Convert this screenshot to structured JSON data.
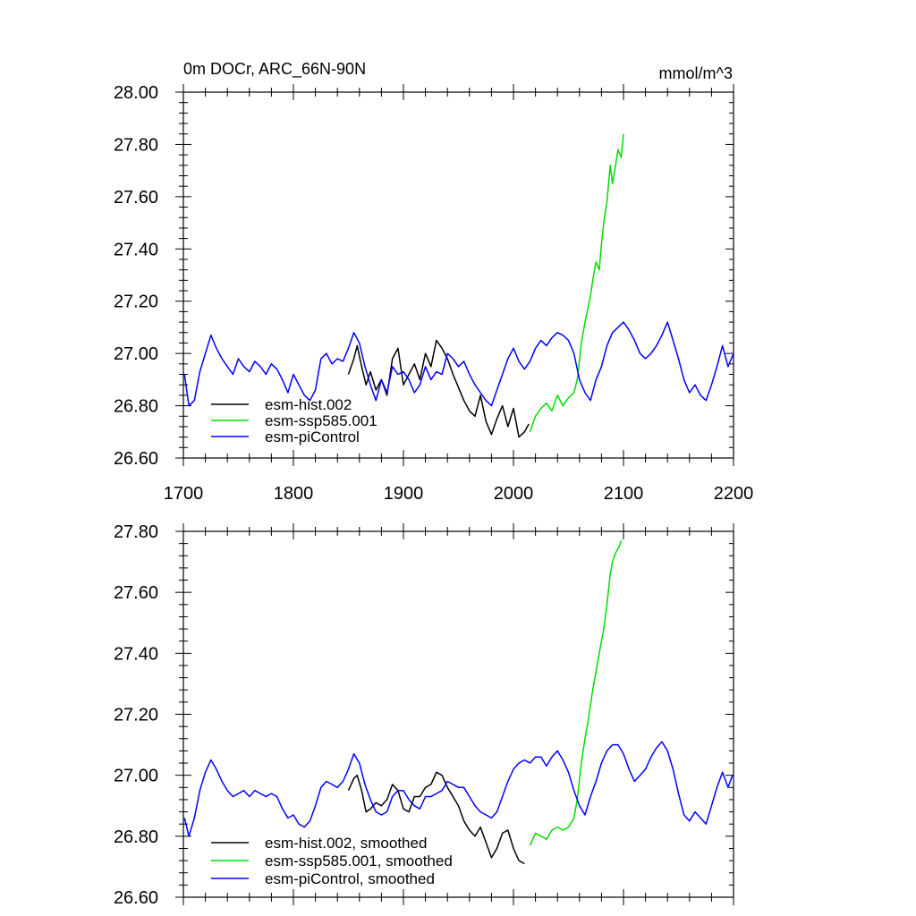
{
  "colors": {
    "hist": "#000000",
    "ssp": "#00dd00",
    "pi": "#0000ff",
    "axis": "#000000",
    "background": "#ffffff"
  },
  "chart_data": [
    {
      "type": "line",
      "title": "0m DOCr, ARC_66N-90N",
      "units": "mmol/m^3",
      "xlim": [
        1700,
        2200
      ],
      "ylim": [
        26.6,
        28.0
      ],
      "x_ticks": [
        "1700",
        "1800",
        "1900",
        "2000",
        "2100",
        "2200"
      ],
      "y_ticks": [
        "26.60",
        "26.80",
        "27.00",
        "27.20",
        "27.40",
        "27.60",
        "27.80",
        "28.00"
      ],
      "grid": false,
      "legend_position": "bottom-left",
      "series": [
        {
          "key": "hist",
          "name": "esm-hist.002",
          "color": "#000000",
          "x": [
            1850,
            1855,
            1858,
            1862,
            1866,
            1870,
            1875,
            1880,
            1885,
            1890,
            1895,
            1900,
            1905,
            1910,
            1915,
            1920,
            1925,
            1930,
            1935,
            1940,
            1945,
            1950,
            1955,
            1960,
            1965,
            1970,
            1975,
            1980,
            1985,
            1990,
            1995,
            2000,
            2005,
            2010,
            2014
          ],
          "values": [
            26.92,
            26.98,
            27.03,
            26.95,
            26.88,
            26.93,
            26.86,
            26.9,
            26.84,
            26.98,
            27.02,
            26.88,
            26.92,
            26.96,
            26.9,
            27.0,
            26.95,
            27.05,
            27.02,
            26.98,
            26.92,
            26.87,
            26.82,
            26.78,
            26.76,
            26.84,
            26.74,
            26.69,
            26.75,
            26.8,
            26.72,
            26.79,
            26.68,
            26.7,
            26.73
          ]
        },
        {
          "key": "ssp",
          "name": "esm-ssp585.001",
          "color": "#00dd00",
          "x": [
            2015,
            2020,
            2025,
            2030,
            2035,
            2040,
            2045,
            2050,
            2055,
            2058,
            2062,
            2065,
            2068,
            2070,
            2072,
            2075,
            2078,
            2080,
            2082,
            2085,
            2088,
            2090,
            2092,
            2095,
            2098,
            2100
          ],
          "values": [
            26.7,
            26.76,
            26.79,
            26.81,
            26.78,
            26.84,
            26.8,
            26.83,
            26.85,
            26.9,
            27.05,
            27.12,
            27.18,
            27.22,
            27.28,
            27.35,
            27.32,
            27.42,
            27.5,
            27.58,
            27.72,
            27.65,
            27.7,
            27.78,
            27.75,
            27.84
          ]
        },
        {
          "key": "pi",
          "name": "esm-piControl",
          "color": "#0000ff",
          "x": [
            1701,
            1705,
            1710,
            1715,
            1720,
            1725,
            1730,
            1735,
            1740,
            1745,
            1750,
            1755,
            1760,
            1765,
            1770,
            1775,
            1780,
            1785,
            1790,
            1795,
            1800,
            1805,
            1810,
            1815,
            1820,
            1825,
            1830,
            1835,
            1840,
            1845,
            1850,
            1855,
            1860,
            1865,
            1870,
            1875,
            1880,
            1885,
            1890,
            1895,
            1900,
            1905,
            1910,
            1915,
            1920,
            1925,
            1930,
            1935,
            1940,
            1945,
            1950,
            1955,
            1960,
            1965,
            1970,
            1975,
            1980,
            1985,
            1990,
            1995,
            2000,
            2005,
            2010,
            2015,
            2020,
            2025,
            2030,
            2035,
            2040,
            2045,
            2050,
            2055,
            2060,
            2065,
            2070,
            2075,
            2080,
            2085,
            2090,
            2095,
            2100,
            2105,
            2110,
            2115,
            2120,
            2125,
            2130,
            2135,
            2140,
            2145,
            2150,
            2155,
            2160,
            2165,
            2170,
            2175,
            2180,
            2185,
            2190,
            2195,
            2200
          ],
          "values": [
            26.92,
            26.8,
            26.82,
            26.93,
            27.0,
            27.07,
            27.02,
            26.98,
            26.95,
            26.92,
            26.98,
            26.95,
            26.93,
            26.97,
            26.95,
            26.92,
            26.96,
            26.94,
            26.9,
            26.85,
            26.92,
            26.88,
            26.84,
            26.82,
            26.86,
            26.98,
            27.0,
            26.96,
            26.98,
            26.97,
            27.02,
            27.08,
            27.04,
            26.95,
            26.88,
            26.82,
            26.9,
            26.85,
            26.95,
            26.92,
            26.93,
            26.9,
            26.85,
            26.88,
            26.95,
            26.9,
            26.93,
            26.92,
            27.0,
            26.98,
            26.95,
            26.97,
            26.92,
            26.88,
            26.85,
            26.82,
            26.8,
            26.86,
            26.92,
            26.98,
            27.02,
            26.97,
            26.94,
            26.97,
            27.02,
            27.05,
            27.03,
            27.06,
            27.08,
            27.07,
            27.05,
            27.0,
            26.9,
            26.85,
            26.82,
            26.9,
            26.95,
            27.03,
            27.08,
            27.1,
            27.12,
            27.09,
            27.05,
            27.0,
            26.98,
            27.0,
            27.03,
            27.07,
            27.12,
            27.05,
            26.98,
            26.9,
            26.85,
            26.88,
            26.84,
            26.82,
            26.88,
            26.95,
            27.03,
            26.95,
            27.0
          ]
        }
      ]
    },
    {
      "type": "line",
      "xlim": [
        1700,
        2200
      ],
      "ylim": [
        26.6,
        27.8
      ],
      "x_ticks": [],
      "y_ticks": [
        "26.60",
        "26.80",
        "27.00",
        "27.20",
        "27.40",
        "27.60",
        "27.80"
      ],
      "grid": false,
      "legend_position": "bottom-left",
      "series": [
        {
          "key": "hist",
          "name": "esm-hist.002, smoothed",
          "color": "#000000",
          "x": [
            1850,
            1855,
            1858,
            1862,
            1866,
            1870,
            1875,
            1880,
            1885,
            1890,
            1895,
            1900,
            1905,
            1910,
            1915,
            1920,
            1925,
            1930,
            1935,
            1940,
            1945,
            1950,
            1955,
            1960,
            1965,
            1970,
            1975,
            1980,
            1985,
            1990,
            1995,
            2000,
            2005,
            2010
          ],
          "values": [
            26.95,
            26.99,
            27.0,
            26.95,
            26.88,
            26.89,
            26.91,
            26.9,
            26.92,
            26.97,
            26.95,
            26.89,
            26.88,
            26.93,
            26.93,
            26.96,
            26.97,
            27.01,
            27.0,
            26.96,
            26.93,
            26.9,
            26.85,
            26.82,
            26.8,
            26.83,
            26.78,
            26.73,
            26.76,
            26.81,
            26.82,
            26.76,
            26.72,
            26.71
          ]
        },
        {
          "key": "ssp",
          "name": "esm-ssp585.001, smoothed",
          "color": "#00dd00",
          "x": [
            2015,
            2020,
            2025,
            2030,
            2035,
            2040,
            2045,
            2050,
            2055,
            2058,
            2062,
            2065,
            2068,
            2072,
            2075,
            2078,
            2082,
            2085,
            2088,
            2090,
            2093,
            2096,
            2098
          ],
          "values": [
            26.77,
            26.81,
            26.8,
            26.79,
            26.82,
            26.83,
            26.82,
            26.83,
            26.86,
            26.92,
            27.05,
            27.12,
            27.18,
            27.28,
            27.34,
            27.4,
            27.48,
            27.56,
            27.66,
            27.7,
            27.73,
            27.75,
            27.77
          ]
        },
        {
          "key": "pi",
          "name": "esm-piControl, smoothed",
          "color": "#0000ff",
          "x": [
            1701,
            1705,
            1710,
            1715,
            1720,
            1725,
            1730,
            1735,
            1740,
            1745,
            1750,
            1755,
            1760,
            1765,
            1770,
            1775,
            1780,
            1785,
            1790,
            1795,
            1800,
            1805,
            1810,
            1815,
            1820,
            1825,
            1830,
            1835,
            1840,
            1845,
            1850,
            1855,
            1860,
            1865,
            1870,
            1875,
            1880,
            1885,
            1890,
            1895,
            1900,
            1905,
            1910,
            1915,
            1920,
            1925,
            1930,
            1935,
            1940,
            1945,
            1950,
            1955,
            1960,
            1965,
            1970,
            1975,
            1980,
            1985,
            1990,
            1995,
            2000,
            2005,
            2010,
            2015,
            2020,
            2025,
            2030,
            2035,
            2040,
            2045,
            2050,
            2055,
            2060,
            2065,
            2070,
            2075,
            2080,
            2085,
            2090,
            2095,
            2100,
            2105,
            2110,
            2115,
            2120,
            2125,
            2130,
            2135,
            2140,
            2145,
            2150,
            2155,
            2160,
            2165,
            2170,
            2175,
            2180,
            2185,
            2190,
            2195,
            2199
          ],
          "values": [
            26.86,
            26.8,
            26.86,
            26.95,
            27.01,
            27.05,
            27.02,
            26.98,
            26.95,
            26.93,
            26.94,
            26.95,
            26.93,
            26.95,
            26.94,
            26.93,
            26.94,
            26.93,
            26.89,
            26.86,
            26.87,
            26.84,
            26.83,
            26.85,
            26.9,
            26.96,
            26.98,
            26.97,
            26.96,
            26.98,
            27.02,
            27.07,
            27.04,
            26.97,
            26.92,
            26.88,
            26.87,
            26.88,
            26.93,
            26.95,
            26.95,
            26.92,
            26.9,
            26.89,
            26.93,
            26.93,
            26.94,
            26.95,
            26.98,
            26.97,
            26.96,
            26.96,
            26.93,
            26.9,
            26.88,
            26.87,
            26.86,
            26.88,
            26.93,
            26.98,
            27.02,
            27.04,
            27.05,
            27.04,
            27.06,
            27.06,
            27.03,
            27.06,
            27.08,
            27.05,
            27.01,
            26.95,
            26.9,
            26.87,
            26.93,
            26.98,
            27.04,
            27.08,
            27.1,
            27.1,
            27.07,
            27.02,
            26.98,
            27.0,
            27.02,
            27.06,
            27.09,
            27.11,
            27.08,
            27.02,
            26.94,
            26.87,
            26.85,
            26.88,
            26.86,
            26.84,
            26.9,
            26.96,
            27.01,
            26.96,
            27.0
          ]
        }
      ]
    }
  ]
}
